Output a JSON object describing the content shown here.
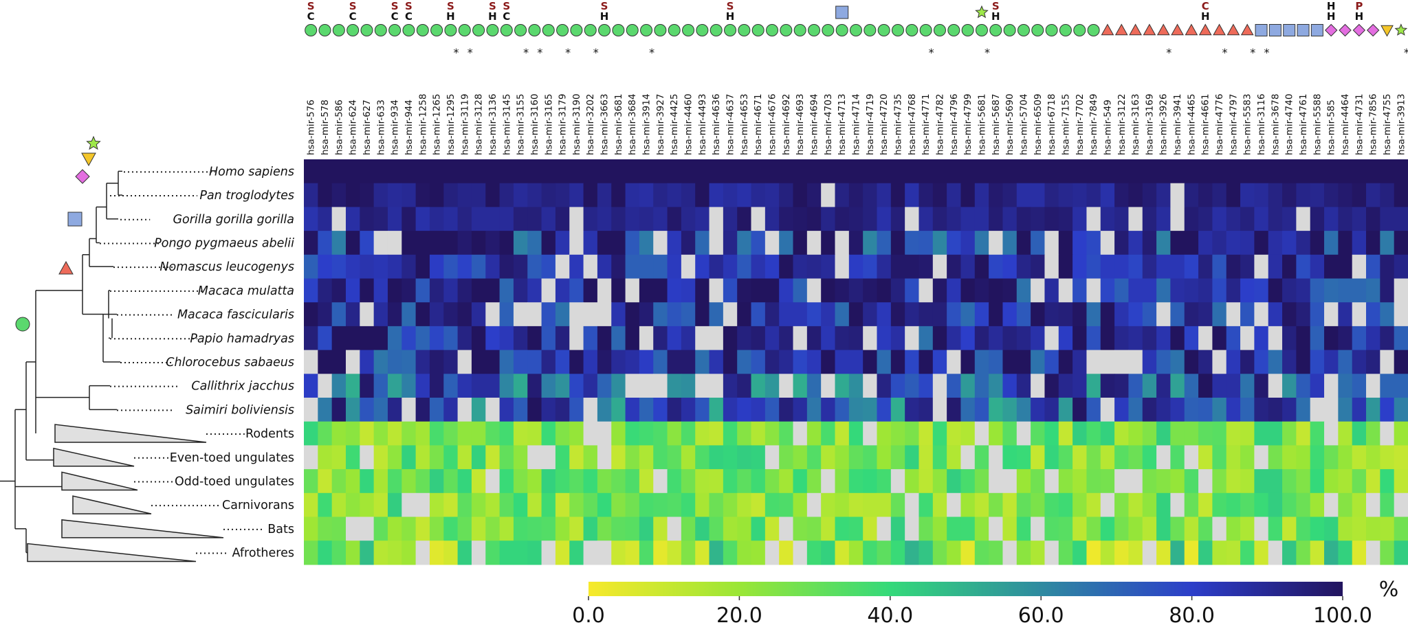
{
  "chart_data": {
    "type": "heatmap",
    "title": "",
    "colorbar": {
      "unit": "%",
      "ticks": [
        "0.0",
        "20.0",
        "40.0",
        "60.0",
        "80.0",
        "100.0"
      ],
      "range": [
        0,
        100
      ],
      "colors": [
        "#f7e92b",
        "#9ae636",
        "#34d97a",
        "#2e8aa0",
        "#2c3ec9",
        "#22145e"
      ]
    },
    "missing_color": "#d9d9d9",
    "columns": [
      "hsa-mir-576",
      "hsa-mir-578",
      "hsa-mir-586",
      "hsa-mir-624",
      "hsa-mir-627",
      "hsa-mir-633",
      "hsa-mir-934",
      "hsa-mir-944",
      "hsa-mir-1258",
      "hsa-mir-1265",
      "hsa-mir-1295",
      "hsa-mir-3119",
      "hsa-mir-3128",
      "hsa-mir-3136",
      "hsa-mir-3145",
      "hsa-mir-3155",
      "hsa-mir-3160",
      "hsa-mir-3165",
      "hsa-mir-3179",
      "hsa-mir-3190",
      "hsa-mir-3202",
      "hsa-mir-3663",
      "hsa-mir-3681",
      "hsa-mir-3684",
      "hsa-mir-3914",
      "hsa-mir-3927",
      "hsa-mir-4425",
      "hsa-mir-4460",
      "hsa-mir-4493",
      "hsa-mir-4636",
      "hsa-mir-4637",
      "hsa-mir-4653",
      "hsa-mir-4671",
      "hsa-mir-4676",
      "hsa-mir-4692",
      "hsa-mir-4693",
      "hsa-mir-4694",
      "hsa-mir-4703",
      "hsa-mir-4713",
      "hsa-mir-4714",
      "hsa-mir-4719",
      "hsa-mir-4720",
      "hsa-mir-4735",
      "hsa-mir-4768",
      "hsa-mir-4771",
      "hsa-mir-4782",
      "hsa-mir-4796",
      "hsa-mir-4799",
      "hsa-mir-5681",
      "hsa-mir-5687",
      "hsa-mir-5690",
      "hsa-mir-5704",
      "hsa-mir-6509",
      "hsa-mir-6718",
      "hsa-mir-7155",
      "hsa-mir-7702",
      "hsa-mir-7849",
      "hsa-mir-549",
      "hsa-mir-3122",
      "hsa-mir-3163",
      "hsa-mir-3169",
      "hsa-mir-3926",
      "hsa-mir-3941",
      "hsa-mir-4465",
      "hsa-mir-4661",
      "hsa-mir-4776",
      "hsa-mir-4797",
      "hsa-mir-5583",
      "hsa-mir-3116",
      "hsa-mir-3678",
      "hsa-mir-4740",
      "hsa-mir-4761",
      "hsa-mir-5588",
      "hsa-mir-585",
      "hsa-mir-4464",
      "hsa-mir-4731",
      "hsa-mir-7856",
      "hsa-mir-4755",
      "hsa-mir-3913"
    ],
    "column_flags": {
      "asterisk": [
        10,
        11,
        15,
        16,
        18,
        20,
        24,
        44,
        48,
        61,
        65,
        67,
        68,
        78
      ],
      "top_letters": [
        {
          "col": 0,
          "l1": "S",
          "l2": "C"
        },
        {
          "col": 3,
          "l1": "S",
          "l2": "C"
        },
        {
          "col": 6,
          "l1": "S",
          "l2": "C"
        },
        {
          "col": 7,
          "l1": "S",
          "l2": "C"
        },
        {
          "col": 10,
          "l1": "S",
          "l2": "H"
        },
        {
          "col": 13,
          "l1": "S",
          "l2": "H"
        },
        {
          "col": 14,
          "l1": "S",
          "l2": "C"
        },
        {
          "col": 21,
          "l1": "S",
          "l2": "H"
        },
        {
          "col": 30,
          "l1": "S",
          "l2": "H"
        },
        {
          "col": 49,
          "l1": "S",
          "l2": "H"
        },
        {
          "col": 64,
          "l1": "C",
          "l2": "H"
        },
        {
          "col": 73,
          "l1": "H",
          "l2": "H"
        },
        {
          "col": 75,
          "l1": "P",
          "l2": "H"
        }
      ],
      "extra_markers": [
        {
          "col": 38,
          "marker": "square"
        },
        {
          "col": 48,
          "marker": "star"
        }
      ]
    },
    "column_markers": {
      "circle": [
        0,
        56
      ],
      "triangle-up": [
        57,
        67
      ],
      "square": [
        68,
        72
      ],
      "diamond": [
        73,
        76
      ],
      "triangle-down": [
        77,
        77
      ],
      "star": [
        78,
        78
      ]
    },
    "marker_colors": {
      "circle": "#5bd86e",
      "triangle-up": "#ee6b5a",
      "square": "#8ea9e0",
      "diamond": "#e36ee0",
      "triangle-down": "#f4c62a",
      "star": "#9ee84a"
    },
    "rows": [
      "Homo sapiens",
      "Pan troglodytes",
      "Gorilla gorilla gorilla",
      "Pongo pygmaeus abelii",
      "Nomascus leucogenys",
      "Macaca mulatta",
      "Macaca fascicularis",
      "Papio hamadryas",
      "Chlorocebus sabaeus",
      "Callithrix jacchus",
      "Saimiri boliviensis",
      "Rodents",
      "Even-toed ungulates",
      "Odd-toed ungulates",
      "Carnivorans",
      "Bats",
      "Afrotheres"
    ],
    "italic_rows": 11,
    "row_value_profile": [
      {
        "row": "Homo sapiens",
        "typical": 100,
        "range": [
          100,
          100
        ]
      },
      {
        "row": "Pan troglodytes",
        "typical": 94,
        "range": [
          70,
          100
        ]
      },
      {
        "row": "Gorilla gorilla gorilla",
        "typical": 92,
        "range": [
          75,
          100
        ]
      },
      {
        "row": "Pongo pygmaeus abelii",
        "typical": 88,
        "range": [
          0,
          100
        ]
      },
      {
        "row": "Nomascus leucogenys",
        "typical": 87,
        "range": [
          40,
          100
        ]
      },
      {
        "row": "Macaca mulatta",
        "typical": 88,
        "range": [
          20,
          100
        ]
      },
      {
        "row": "Macaca fascicularis",
        "typical": 88,
        "range": [
          20,
          100
        ]
      },
      {
        "row": "Papio hamadryas",
        "typical": 88,
        "range": [
          20,
          100
        ]
      },
      {
        "row": "Chlorocebus sabaeus",
        "typical": 87,
        "range": [
          20,
          100
        ]
      },
      {
        "row": "Callithrix jacchus",
        "typical": 75,
        "range": [
          10,
          100
        ]
      },
      {
        "row": "Saimiri boliviensis",
        "typical": 75,
        "range": [
          10,
          100
        ]
      },
      {
        "row": "Rodents",
        "typical": 27,
        "range": [
          0,
          60
        ]
      },
      {
        "row": "Even-toed ungulates",
        "typical": 27,
        "range": [
          0,
          60
        ]
      },
      {
        "row": "Odd-toed ungulates",
        "typical": 27,
        "range": [
          0,
          60
        ]
      },
      {
        "row": "Carnivorans",
        "typical": 27,
        "range": [
          0,
          60
        ]
      },
      {
        "row": "Bats",
        "typical": 27,
        "range": [
          0,
          60
        ]
      },
      {
        "row": "Afrotheres",
        "typical": 27,
        "range": [
          0,
          90
        ]
      }
    ],
    "tree_markers": [
      {
        "clade": "Homo sapiens",
        "marker": "star"
      },
      {
        "clade": "Homo sapiens + Pan troglodytes",
        "marker": "triangle-down"
      },
      {
        "clade": "Homininae",
        "marker": "diamond"
      },
      {
        "clade": "Hominidae",
        "marker": "square"
      },
      {
        "clade": "Catarrhini",
        "marker": "triangle-up"
      },
      {
        "clade": "Primates",
        "marker": "circle"
      }
    ]
  }
}
